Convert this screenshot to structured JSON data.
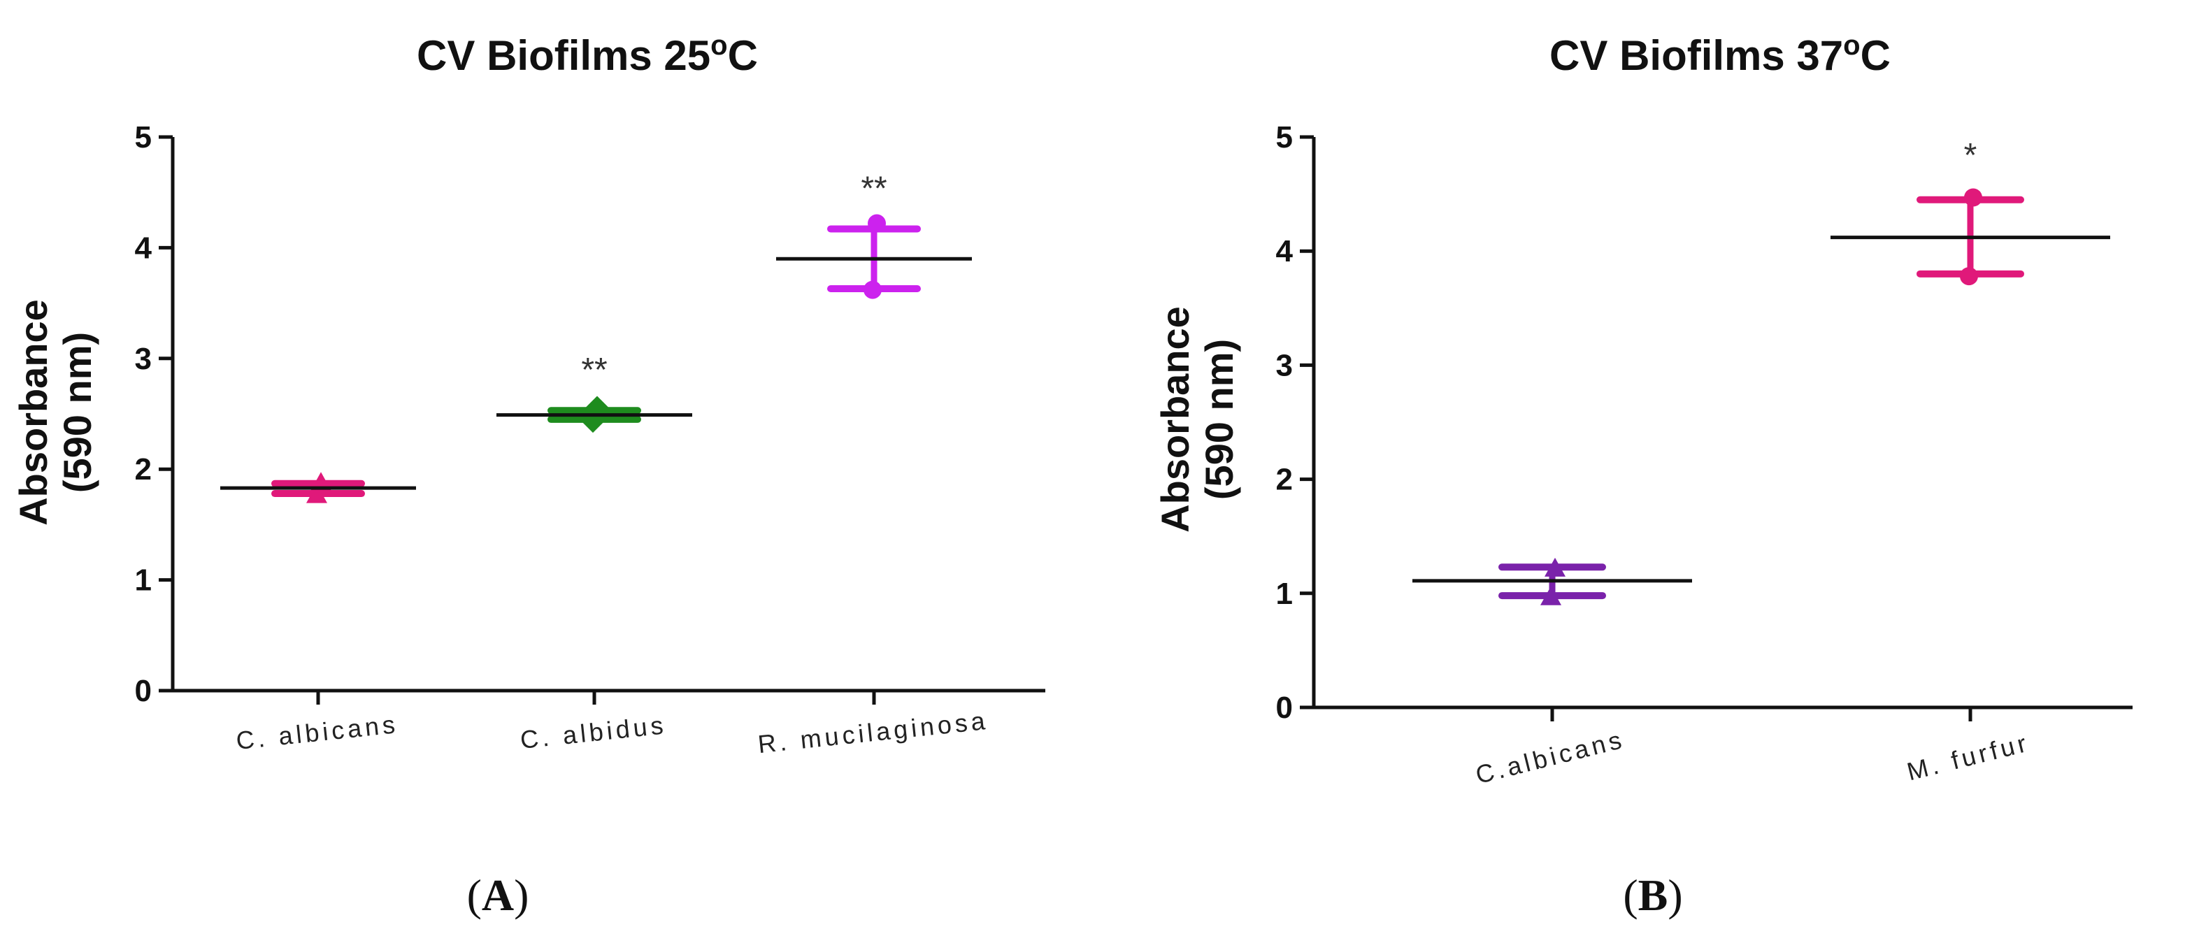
{
  "chart_data": [
    {
      "type": "scatter",
      "title_main": "CV Biofilms 25",
      "title_sup": "o",
      "title_end": "C",
      "ylabel_line1": "Absorbance",
      "ylabel_line2": "(590 nm)",
      "xlabel": "",
      "ylim": [
        0,
        5
      ],
      "yticks": [
        0,
        1,
        2,
        3,
        4,
        5
      ],
      "ytick_labels": [
        "0",
        "1",
        "2",
        "3",
        "4",
        "5"
      ],
      "panel_open": "(",
      "panel_letter": "A",
      "panel_close": ")",
      "series": [
        {
          "category": "C.  albicans",
          "marker": "triangle",
          "color": "#e0197a",
          "points": [
            1.77,
            1.88
          ],
          "mean": 1.83,
          "err_low": 1.78,
          "err_high": 1.87,
          "significance": ""
        },
        {
          "category": "C.  albidus",
          "marker": "diamond",
          "color": "#1e8c1e",
          "points": [
            2.43,
            2.56
          ],
          "mean": 2.49,
          "err_low": 2.45,
          "err_high": 2.53,
          "significance": "**"
        },
        {
          "category": "R.  mucilaginosa",
          "marker": "circle",
          "color": "#cc22ee",
          "points": [
            3.62,
            4.22
          ],
          "mean": 3.9,
          "err_low": 3.63,
          "err_high": 4.17,
          "significance": "**"
        }
      ]
    },
    {
      "type": "scatter",
      "title_main": "CV Biofilms 37",
      "title_sup": "o",
      "title_end": "C",
      "ylabel_line1": "Absorbance",
      "ylabel_line2": "(590 nm)",
      "xlabel": "",
      "ylim": [
        0,
        5
      ],
      "yticks": [
        0,
        1,
        2,
        3,
        4,
        5
      ],
      "ytick_labels": [
        "0",
        "1",
        "2",
        "3",
        "4",
        "5"
      ],
      "panel_open": "(",
      "panel_letter": "B",
      "panel_close": ")",
      "series": [
        {
          "category": "C.albicans",
          "marker": "triangle",
          "color": "#7a22aa",
          "points": [
            0.97,
            1.22
          ],
          "mean": 1.11,
          "err_low": 0.98,
          "err_high": 1.23,
          "significance": ""
        },
        {
          "category": "M.  furfur",
          "marker": "circle",
          "color": "#e0197a",
          "points": [
            3.78,
            4.47
          ],
          "mean": 4.12,
          "err_low": 3.8,
          "err_high": 4.45,
          "significance": "*"
        }
      ]
    }
  ]
}
